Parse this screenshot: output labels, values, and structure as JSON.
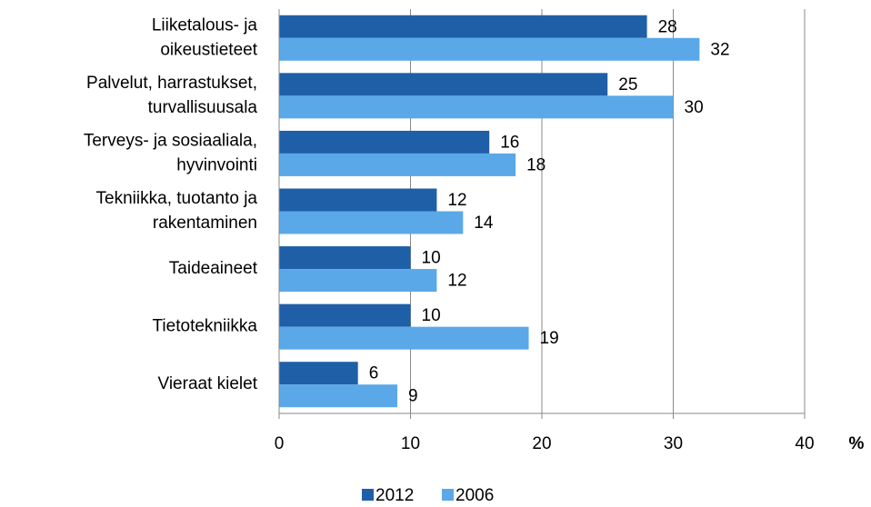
{
  "chart_data": {
    "type": "bar",
    "orientation": "horizontal",
    "categories": [
      [
        "Liiketalous- ja",
        "oikeustieteet"
      ],
      [
        "Palvelut, harrastukset,",
        "turvallisuusala"
      ],
      [
        "Terveys- ja sosiaaliala,",
        "hyvinvointi"
      ],
      [
        "Tekniikka, tuotanto ja",
        "rakentaminen"
      ],
      [
        "Taideaineet"
      ],
      [
        "Tietotekniikka"
      ],
      [
        "Vieraat kielet"
      ]
    ],
    "series": [
      {
        "name": "2012",
        "color": "#1f5fa8",
        "values": [
          28,
          25,
          16,
          12,
          10,
          10,
          6
        ]
      },
      {
        "name": "2006",
        "color": "#5aa8e8",
        "values": [
          32,
          30,
          18,
          14,
          12,
          19,
          9
        ]
      }
    ],
    "xlim": [
      0,
      40
    ],
    "xticks": [
      0,
      10,
      20,
      30,
      40
    ],
    "x_unit": "%",
    "grid": true,
    "legend": "bottom"
  }
}
